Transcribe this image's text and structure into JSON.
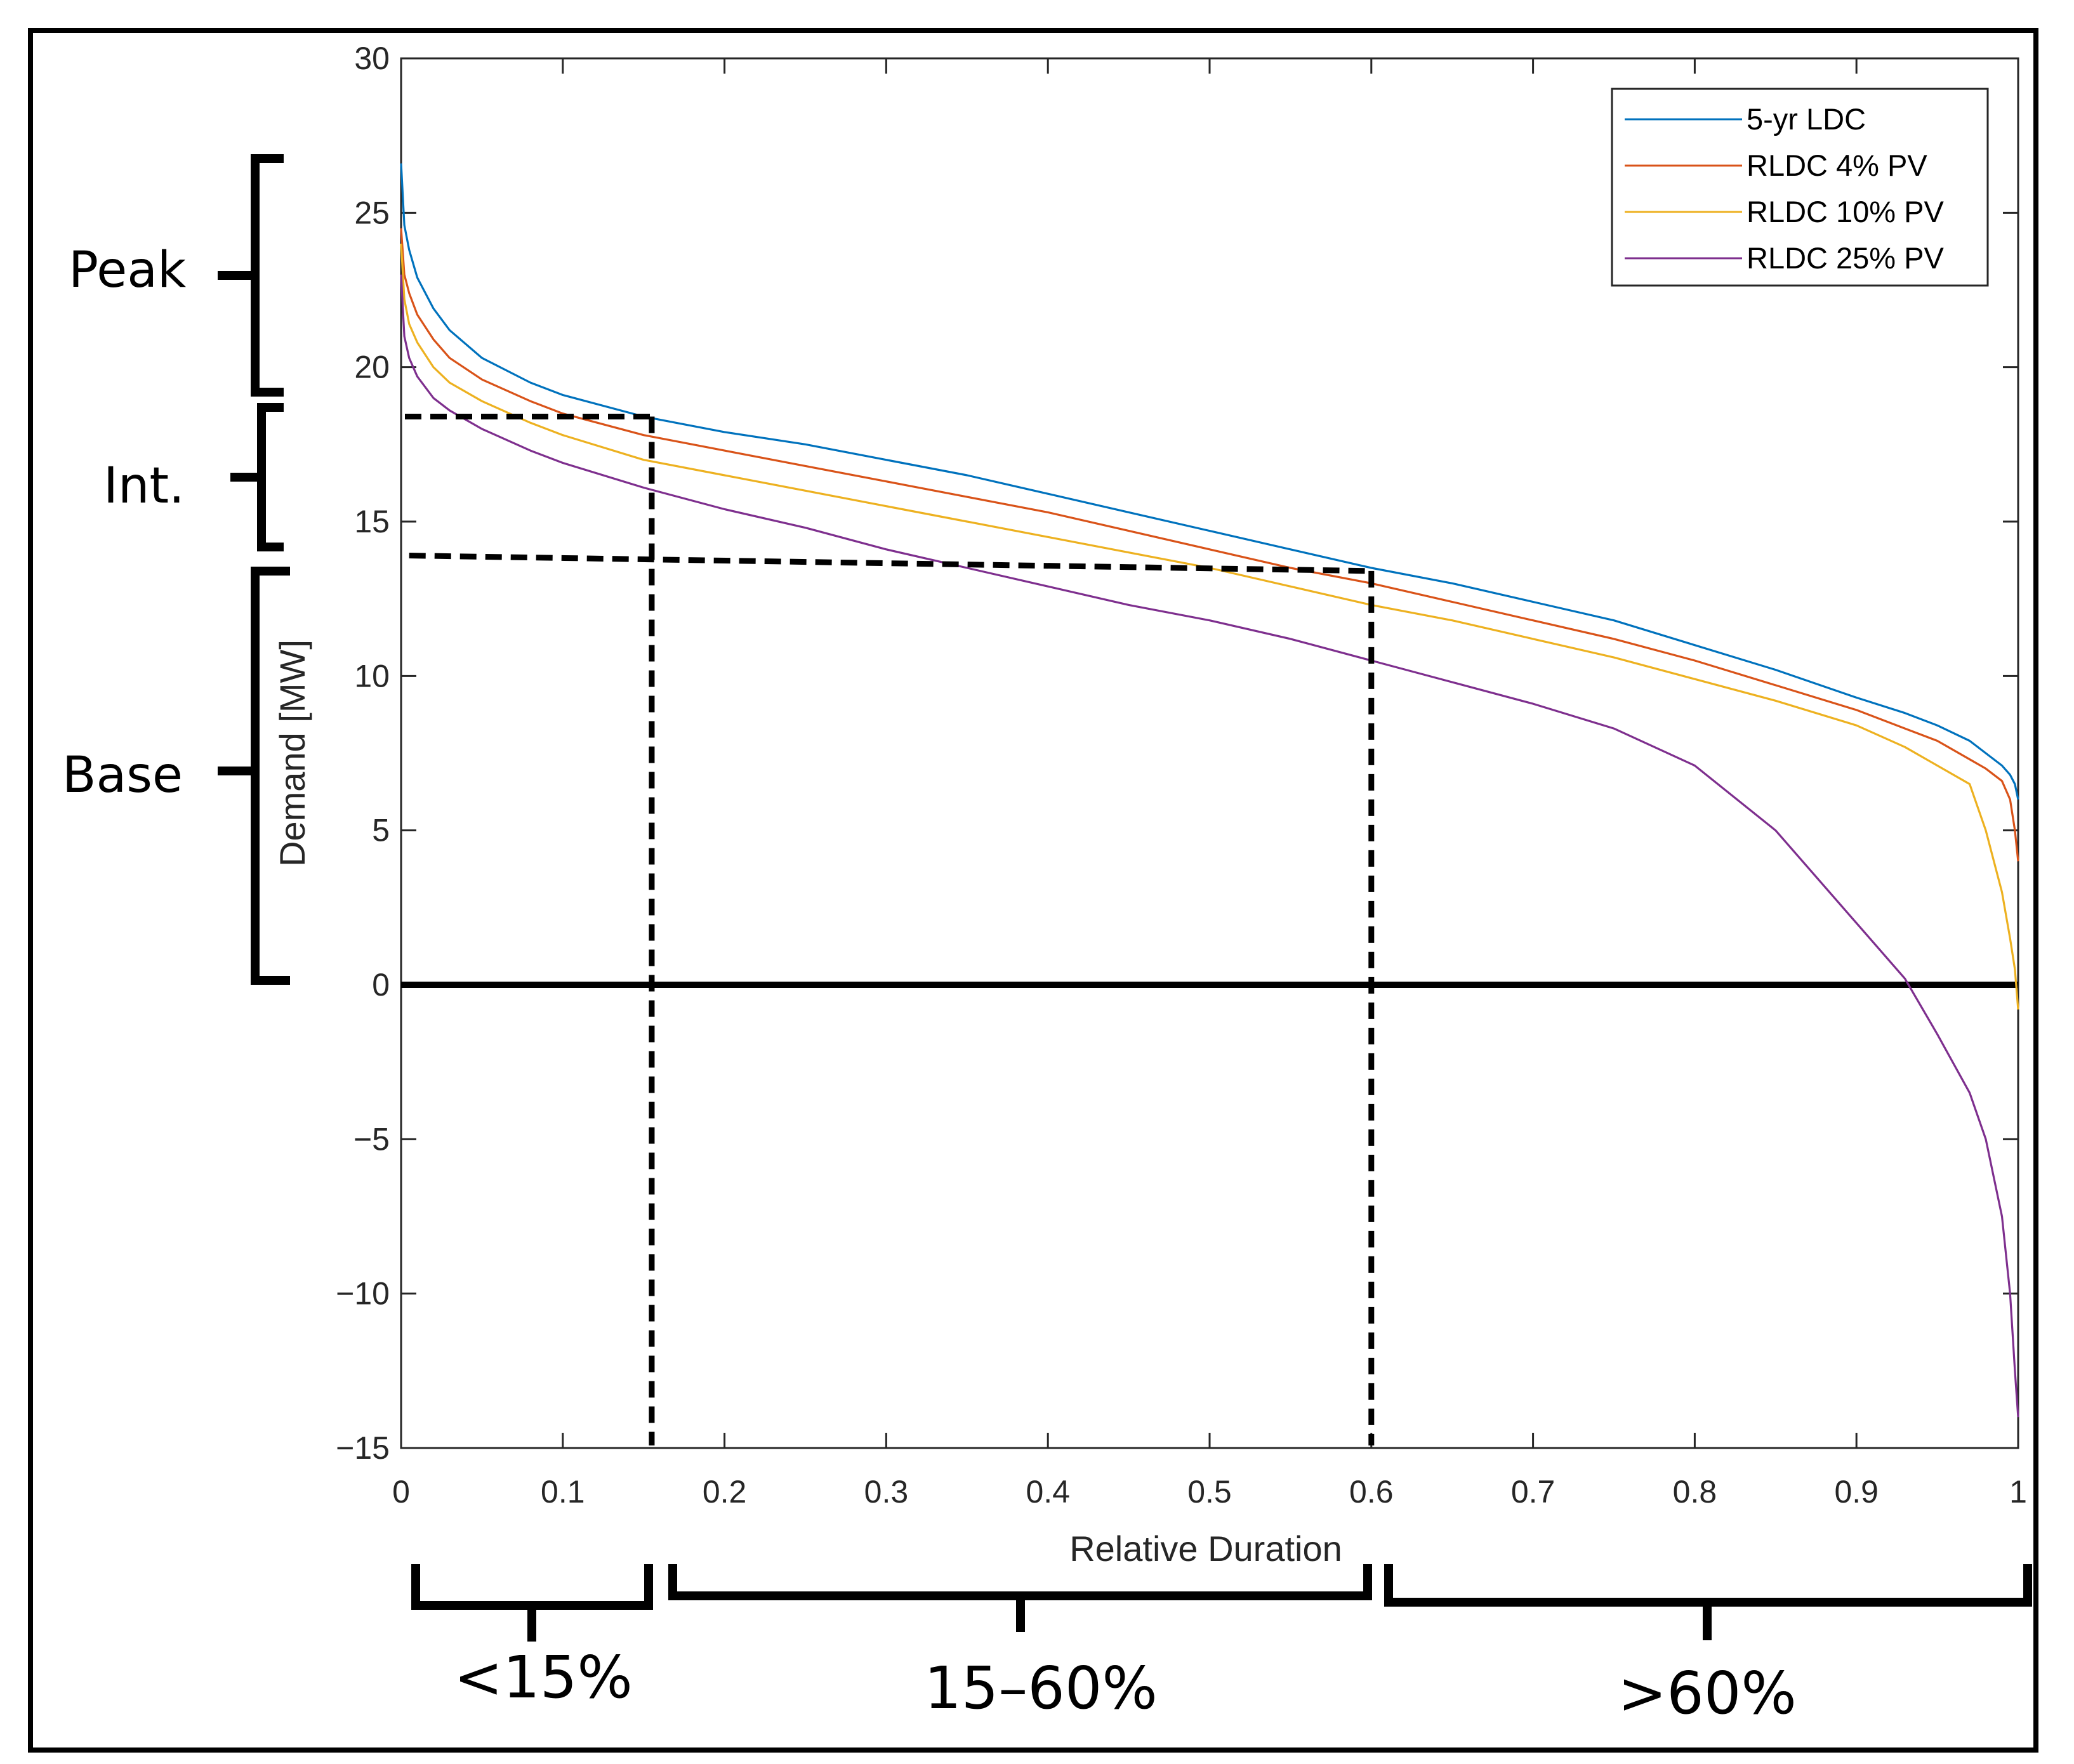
{
  "chart_data": {
    "type": "line",
    "title": "",
    "xlabel": "Relative Duration",
    "ylabel": "Demand [MW]",
    "xlim": [
      0,
      1
    ],
    "ylim": [
      -15,
      30
    ],
    "grid": false,
    "legend_position": "top-right",
    "x_ticks": [
      0,
      0.1,
      0.2,
      0.3,
      0.4,
      0.5,
      0.6,
      0.7,
      0.8,
      0.9,
      1
    ],
    "x_tick_labels": [
      "0",
      "0.1",
      "0.2",
      "0.3",
      "0.4",
      "0.5",
      "0.6",
      "0.7",
      "0.8",
      "0.9",
      "1"
    ],
    "y_ticks": [
      -15,
      -10,
      -5,
      0,
      5,
      10,
      15,
      20,
      25,
      30
    ],
    "y_tick_labels": [
      "−15",
      "−10",
      "−5",
      "0",
      "5",
      "10",
      "15",
      "20",
      "25",
      "30"
    ],
    "x": [
      0,
      0.002,
      0.005,
      0.01,
      0.02,
      0.03,
      0.05,
      0.08,
      0.1,
      0.15,
      0.2,
      0.25,
      0.3,
      0.35,
      0.4,
      0.45,
      0.5,
      0.55,
      0.6,
      0.65,
      0.7,
      0.75,
      0.8,
      0.85,
      0.9,
      0.93,
      0.95,
      0.97,
      0.98,
      0.99,
      0.995,
      0.998,
      1
    ],
    "series": [
      {
        "name": "5-yr LDC",
        "color": "#0072BD",
        "values": [
          26.6,
          24.6,
          23.8,
          22.9,
          21.9,
          21.2,
          20.3,
          19.5,
          19.1,
          18.4,
          17.9,
          17.5,
          17.0,
          16.5,
          15.9,
          15.3,
          14.7,
          14.1,
          13.5,
          13.0,
          12.4,
          11.8,
          11.0,
          10.2,
          9.3,
          8.8,
          8.4,
          7.9,
          7.5,
          7.1,
          6.8,
          6.5,
          6.0
        ]
      },
      {
        "name": "RLDC 4% PV",
        "color": "#D95319",
        "values": [
          24.5,
          23.0,
          22.4,
          21.7,
          20.9,
          20.3,
          19.6,
          18.9,
          18.5,
          17.8,
          17.3,
          16.8,
          16.3,
          15.8,
          15.3,
          14.7,
          14.1,
          13.5,
          13.0,
          12.4,
          11.8,
          11.2,
          10.5,
          9.7,
          8.9,
          8.3,
          7.9,
          7.3,
          7.0,
          6.6,
          6.0,
          5.0,
          4.0
        ]
      },
      {
        "name": "RLDC 10% PV",
        "color": "#EDB120",
        "values": [
          24.0,
          22.2,
          21.4,
          20.8,
          20.0,
          19.5,
          18.9,
          18.2,
          17.8,
          17.0,
          16.5,
          16.0,
          15.5,
          15.0,
          14.5,
          14.0,
          13.5,
          12.9,
          12.3,
          11.8,
          11.2,
          10.6,
          9.9,
          9.2,
          8.4,
          7.7,
          7.1,
          6.5,
          5.0,
          3.0,
          1.5,
          0.5,
          -0.8
        ]
      },
      {
        "name": "RLDC 25% PV",
        "color": "#7E2F8E",
        "values": [
          23.0,
          21.0,
          20.3,
          19.7,
          19.0,
          18.6,
          18.0,
          17.3,
          16.9,
          16.1,
          15.4,
          14.8,
          14.1,
          13.5,
          12.9,
          12.3,
          11.8,
          11.2,
          10.5,
          9.8,
          9.1,
          8.3,
          7.1,
          5.0,
          2.0,
          0.2,
          -1.6,
          -3.5,
          -5.0,
          -7.5,
          -10.0,
          -12.5,
          -14.0
        ]
      }
    ],
    "annotations": {
      "band_labels": [
        "Peak",
        "Int.",
        "Base"
      ],
      "duration_labels": [
        "<15%",
        "15–60%",
        ">60%"
      ],
      "guide_x": [
        0.155,
        0.6
      ],
      "guide_y": [
        18.4,
        13.9,
        13.4
      ],
      "zero_line": 0
    }
  }
}
